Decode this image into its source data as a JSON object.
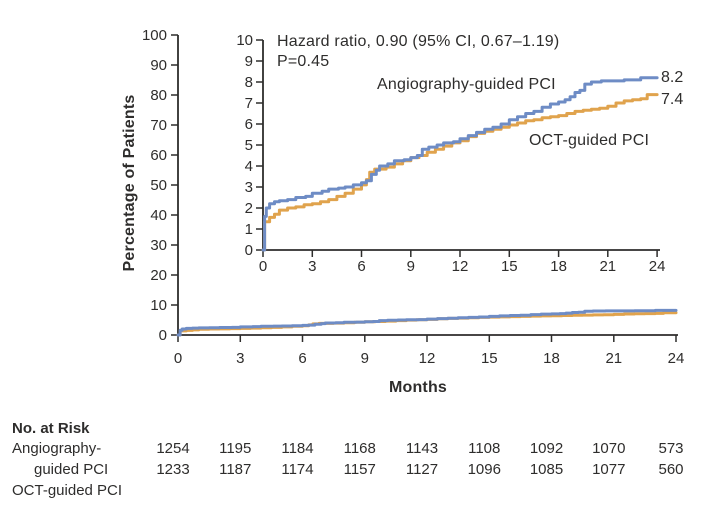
{
  "figure": {
    "y_axis_label": "Percentage of Patients",
    "x_axis_label": "Months",
    "annotation": {
      "line1": "Hazard ratio, 0.90 (95% CI, 0.67–1.19)",
      "line2": "P=0.45"
    },
    "curve_labels": {
      "angiography": "Angiography-guided PCI",
      "oct": "OCT-guided PCI"
    },
    "end_labels": {
      "angiography": "8.2",
      "oct": "7.4"
    }
  },
  "chart_data": {
    "type": "line",
    "subtype": "kaplan-meier-cumulative-incidence",
    "title": "",
    "xlabel": "Months",
    "ylabel": "Percentage of Patients",
    "x_range": [
      0,
      24
    ],
    "x_ticks": [
      0,
      3,
      6,
      9,
      12,
      15,
      18,
      21,
      24
    ],
    "main_axis": {
      "ylim": [
        0,
        100
      ],
      "yticks": [
        0,
        10,
        20,
        30,
        40,
        50,
        60,
        70,
        80,
        90,
        100
      ]
    },
    "inset_axis": {
      "ylim": [
        0,
        10
      ],
      "yticks": [
        0,
        1,
        2,
        3,
        4,
        5,
        6,
        7,
        8,
        9,
        10
      ]
    },
    "grid": false,
    "annotations": [
      "Hazard ratio, 0.90 (95% CI, 0.67–1.19)",
      "P=0.45"
    ],
    "series": [
      {
        "name": "OCT-guided PCI",
        "color": "#E0A34D",
        "final_value": 7.4,
        "points": [
          [
            0,
            0
          ],
          [
            0.1,
            1.35
          ],
          [
            0.4,
            1.55
          ],
          [
            0.7,
            1.7
          ],
          [
            1,
            1.9
          ],
          [
            1.5,
            2.0
          ],
          [
            2,
            2.05
          ],
          [
            2.5,
            2.15
          ],
          [
            3,
            2.2
          ],
          [
            3.5,
            2.3
          ],
          [
            4,
            2.4
          ],
          [
            4.5,
            2.55
          ],
          [
            5,
            2.7
          ],
          [
            5.5,
            2.9
          ],
          [
            6,
            3.1
          ],
          [
            6.3,
            3.35
          ],
          [
            6.5,
            3.7
          ],
          [
            6.8,
            3.85
          ],
          [
            7.5,
            3.95
          ],
          [
            8,
            4.1
          ],
          [
            8.5,
            4.25
          ],
          [
            9,
            4.4
          ],
          [
            9.5,
            4.5
          ],
          [
            10,
            4.65
          ],
          [
            10.5,
            4.8
          ],
          [
            11,
            4.95
          ],
          [
            11.5,
            5.1
          ],
          [
            12,
            5.2
          ],
          [
            12.5,
            5.4
          ],
          [
            13,
            5.55
          ],
          [
            13.5,
            5.65
          ],
          [
            14,
            5.75
          ],
          [
            14.5,
            5.85
          ],
          [
            15,
            5.95
          ],
          [
            15.5,
            6.05
          ],
          [
            16,
            6.15
          ],
          [
            16.5,
            6.2
          ],
          [
            17,
            6.3
          ],
          [
            17.5,
            6.35
          ],
          [
            18,
            6.4
          ],
          [
            18.5,
            6.5
          ],
          [
            19,
            6.6
          ],
          [
            19.5,
            6.65
          ],
          [
            20,
            6.7
          ],
          [
            20.5,
            6.75
          ],
          [
            21,
            6.85
          ],
          [
            21.5,
            7.0
          ],
          [
            22,
            7.1
          ],
          [
            22.5,
            7.15
          ],
          [
            23,
            7.2
          ],
          [
            23.4,
            7.4
          ],
          [
            24,
            7.4
          ]
        ]
      },
      {
        "name": "Angiography-guided PCI",
        "color": "#6E8CC5",
        "final_value": 8.2,
        "points": [
          [
            0,
            0
          ],
          [
            0.1,
            1.6
          ],
          [
            0.2,
            2.0
          ],
          [
            0.4,
            2.2
          ],
          [
            0.7,
            2.3
          ],
          [
            1,
            2.35
          ],
          [
            1.5,
            2.4
          ],
          [
            2,
            2.5
          ],
          [
            2.6,
            2.55
          ],
          [
            3,
            2.7
          ],
          [
            3.6,
            2.8
          ],
          [
            4,
            2.9
          ],
          [
            4.6,
            2.95
          ],
          [
            5,
            3.0
          ],
          [
            5.5,
            3.1
          ],
          [
            6,
            3.2
          ],
          [
            6.3,
            3.3
          ],
          [
            6.6,
            3.6
          ],
          [
            6.9,
            3.8
          ],
          [
            7.1,
            4.0
          ],
          [
            7.6,
            4.1
          ],
          [
            8,
            4.25
          ],
          [
            8.6,
            4.3
          ],
          [
            9,
            4.4
          ],
          [
            9.4,
            4.5
          ],
          [
            9.7,
            4.8
          ],
          [
            10.1,
            4.9
          ],
          [
            10.6,
            5.0
          ],
          [
            11,
            5.1
          ],
          [
            11.6,
            5.15
          ],
          [
            12,
            5.3
          ],
          [
            12.5,
            5.45
          ],
          [
            13,
            5.6
          ],
          [
            13.5,
            5.75
          ],
          [
            14,
            5.85
          ],
          [
            14.5,
            6.0
          ],
          [
            15,
            6.2
          ],
          [
            15.5,
            6.35
          ],
          [
            16,
            6.5
          ],
          [
            16.5,
            6.6
          ],
          [
            17,
            6.8
          ],
          [
            17.5,
            6.95
          ],
          [
            18,
            7.05
          ],
          [
            18.4,
            7.15
          ],
          [
            18.7,
            7.3
          ],
          [
            19,
            7.5
          ],
          [
            19.3,
            7.6
          ],
          [
            19.6,
            7.9
          ],
          [
            20,
            8.0
          ],
          [
            20.6,
            8.05
          ],
          [
            22,
            8.1
          ],
          [
            23,
            8.2
          ],
          [
            24,
            8.2
          ]
        ]
      }
    ]
  },
  "risk_table": {
    "title": "No. at Risk",
    "line1_label": "Angiography-",
    "line2_label": "guided PCI",
    "line3_label": "OCT-guided PCI",
    "row1_counts": [
      "1254",
      "1195",
      "1184",
      "1168",
      "1143",
      "1108",
      "1092",
      "1070",
      "573"
    ],
    "row2_counts": [
      "1233",
      "1187",
      "1174",
      "1157",
      "1127",
      "1096",
      "1085",
      "1077",
      "560"
    ]
  },
  "colors": {
    "angiography_blue": "#6E8CC5",
    "oct_orange": "#E0A34D",
    "axis_ink": "#2e2d2c"
  }
}
